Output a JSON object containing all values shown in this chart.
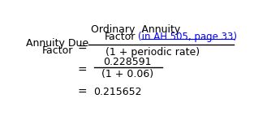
{
  "bg_color": "#ffffff",
  "text_color": "#000000",
  "blue_color": "#0000FF",
  "font_size": 9,
  "lhslabel_line1": "Annuity Due",
  "lhslabel_line2": "Factor",
  "ordinary_annuity": "Ordinary  Annuity",
  "factor_label": "Factor",
  "ah_ref": "(in AH 505, page 33)",
  "denominator1": "(1 + periodic rate)",
  "num2": "0.228591",
  "den2": "(1 + 0.06)",
  "result": "0.215652"
}
